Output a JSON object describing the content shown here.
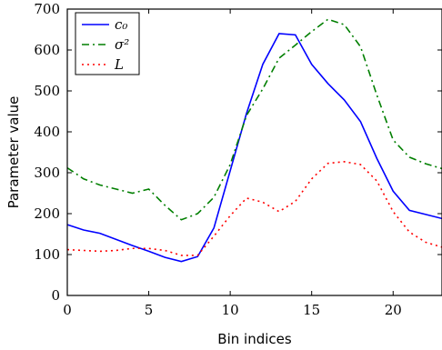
{
  "chart_data": {
    "type": "line",
    "xlabel": "Bin indices",
    "ylabel": "Parameter value",
    "xlim": [
      0,
      23
    ],
    "ylim": [
      0,
      700
    ],
    "xticks": [
      0,
      5,
      10,
      15,
      20
    ],
    "yticks": [
      0,
      100,
      200,
      300,
      400,
      500,
      600,
      700
    ],
    "grid": false,
    "legend_position": "top-left",
    "x": [
      0,
      1,
      2,
      3,
      4,
      5,
      6,
      7,
      8,
      9,
      10,
      11,
      12,
      13,
      14,
      15,
      16,
      17,
      18,
      19,
      20,
      21,
      22,
      23
    ],
    "series": [
      {
        "name": "c₀",
        "color": "#0000ff",
        "style": "solid",
        "values": [
          173,
          160,
          152,
          137,
          122,
          108,
          93,
          83,
          95,
          165,
          305,
          445,
          565,
          640,
          637,
          565,
          518,
          478,
          425,
          335,
          255,
          208,
          198,
          188
        ]
      },
      {
        "name": "σ²",
        "color": "#007f00",
        "style": "dashdot",
        "values": [
          312,
          285,
          270,
          260,
          250,
          260,
          220,
          185,
          200,
          240,
          320,
          440,
          505,
          580,
          612,
          645,
          675,
          662,
          608,
          490,
          380,
          338,
          322,
          310
        ]
      },
      {
        "name": "L",
        "color": "#ff0000",
        "style": "dotted",
        "values": [
          112,
          110,
          108,
          110,
          115,
          115,
          110,
          98,
          98,
          145,
          195,
          238,
          228,
          205,
          230,
          285,
          323,
          327,
          320,
          280,
          205,
          155,
          130,
          118
        ]
      }
    ]
  }
}
